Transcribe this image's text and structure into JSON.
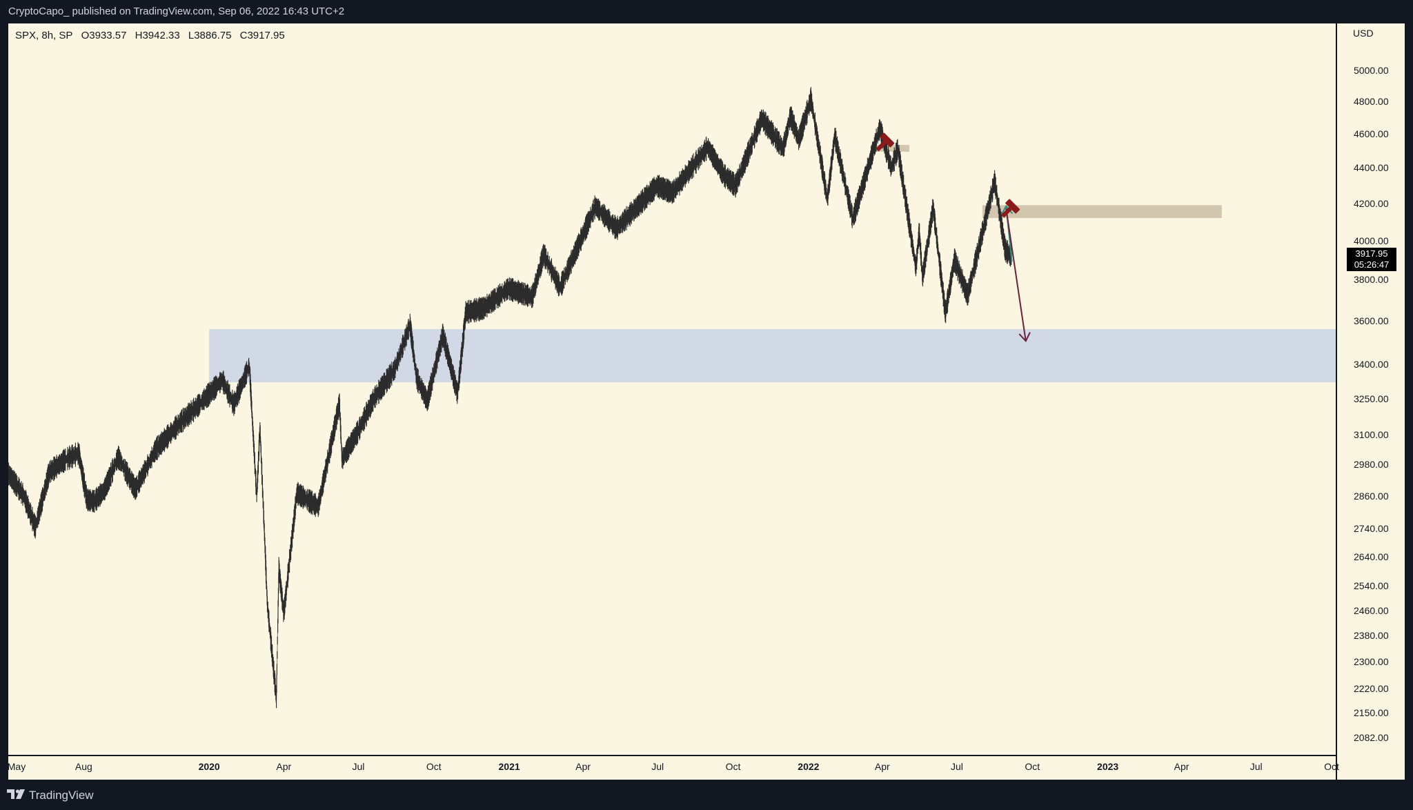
{
  "header": {
    "attribution": "CryptoCapo_ published on TradingView.com, Sep 06, 2022 16:43 UTC+2"
  },
  "legend": {
    "symbol": "SPX, 8h, SP",
    "open": "O3933.57",
    "high": "H3942.33",
    "low": "L3886.75",
    "close": "C3917.95"
  },
  "price_badge": {
    "price": "3917.95",
    "countdown": "05:26:47"
  },
  "footer": {
    "brand": "TradingView"
  },
  "colors": {
    "background": "#faf6e1",
    "frame": "#131722",
    "candles": "#2b2b2b",
    "support_zone": "#d1d8e6",
    "resistance_zone": "#cdc2a8",
    "bear_arrow": "#6b1f3a",
    "bounce_arrow": "#2b8f7e",
    "marker": "#8b1a1a"
  },
  "icons": [
    "tradingview-logo-icon",
    "gavel-icon"
  ],
  "chart_data": {
    "type": "line",
    "symbol": "SPX",
    "interval": "8h",
    "currency": "USD",
    "y_scale": "log",
    "ylim": [
      2035,
      5320
    ],
    "xlim": [
      "2019-05-01",
      "2023-10-06"
    ],
    "y_ticks": [
      "5000.00",
      "4800.00",
      "4600.00",
      "4400.00",
      "4200.00",
      "4000.00",
      "3800.00",
      "3600.00",
      "3400.00",
      "3250.00",
      "3100.00",
      "2980.00",
      "2860.00",
      "2740.00",
      "2640.00",
      "2540.00",
      "2460.00",
      "2380.00",
      "2300.00",
      "2220.00",
      "2150.00",
      "2082.00"
    ],
    "x_ticks": [
      {
        "label": "May",
        "date": "2019-05-01",
        "bold": false
      },
      {
        "label": "Aug",
        "date": "2019-08-01",
        "bold": false
      },
      {
        "label": "2020",
        "date": "2020-01-01",
        "bold": true
      },
      {
        "label": "Apr",
        "date": "2020-04-01",
        "bold": false
      },
      {
        "label": "Jul",
        "date": "2020-07-01",
        "bold": false
      },
      {
        "label": "Oct",
        "date": "2020-10-01",
        "bold": false
      },
      {
        "label": "2021",
        "date": "2021-01-01",
        "bold": true
      },
      {
        "label": "Apr",
        "date": "2021-04-01",
        "bold": false
      },
      {
        "label": "Jul",
        "date": "2021-07-01",
        "bold": false
      },
      {
        "label": "Oct",
        "date": "2021-10-01",
        "bold": false
      },
      {
        "label": "2022",
        "date": "2022-01-01",
        "bold": true
      },
      {
        "label": "Apr",
        "date": "2022-04-01",
        "bold": false
      },
      {
        "label": "Jul",
        "date": "2022-07-01",
        "bold": false
      },
      {
        "label": "Oct",
        "date": "2022-10-01",
        "bold": false
      },
      {
        "label": "2023",
        "date": "2023-01-01",
        "bold": true
      },
      {
        "label": "Apr",
        "date": "2023-04-01",
        "bold": false
      },
      {
        "label": "Jul",
        "date": "2023-07-01",
        "bold": false
      },
      {
        "label": "Oct",
        "date": "2023-10-01",
        "bold": false
      }
    ],
    "series": [
      {
        "values": [
          [
            "2019-05-01",
            2945
          ],
          [
            "2019-05-20",
            2860
          ],
          [
            "2019-06-03",
            2745
          ],
          [
            "2019-06-20",
            2950
          ],
          [
            "2019-07-10",
            3000
          ],
          [
            "2019-07-26",
            3025
          ],
          [
            "2019-08-05",
            2845
          ],
          [
            "2019-08-14",
            2840
          ],
          [
            "2019-08-26",
            2880
          ],
          [
            "2019-09-12",
            3010
          ],
          [
            "2019-10-03",
            2885
          ],
          [
            "2019-10-28",
            3040
          ],
          [
            "2019-11-27",
            3150
          ],
          [
            "2019-12-20",
            3225
          ],
          [
            "2020-01-17",
            3330
          ],
          [
            "2020-01-31",
            3225
          ],
          [
            "2020-02-19",
            3393
          ],
          [
            "2020-02-28",
            2855
          ],
          [
            "2020-03-03",
            3130
          ],
          [
            "2020-03-12",
            2480
          ],
          [
            "2020-03-23",
            2192
          ],
          [
            "2020-03-26",
            2600
          ],
          [
            "2020-04-01",
            2450
          ],
          [
            "2020-04-17",
            2870
          ],
          [
            "2020-05-13",
            2820
          ],
          [
            "2020-06-08",
            3230
          ],
          [
            "2020-06-11",
            3000
          ],
          [
            "2020-07-01",
            3115
          ],
          [
            "2020-07-20",
            3250
          ],
          [
            "2020-08-14",
            3375
          ],
          [
            "2020-09-02",
            3580
          ],
          [
            "2020-09-10",
            3340
          ],
          [
            "2020-09-23",
            3240
          ],
          [
            "2020-10-12",
            3534
          ],
          [
            "2020-10-30",
            3270
          ],
          [
            "2020-11-09",
            3640
          ],
          [
            "2020-12-01",
            3660
          ],
          [
            "2020-12-31",
            3756
          ],
          [
            "2021-01-29",
            3714
          ],
          [
            "2021-02-12",
            3930
          ],
          [
            "2021-03-04",
            3760
          ],
          [
            "2021-04-16",
            4185
          ],
          [
            "2021-05-12",
            4063
          ],
          [
            "2021-06-30",
            4298
          ],
          [
            "2021-07-19",
            4260
          ],
          [
            "2021-08-31",
            4523
          ],
          [
            "2021-09-20",
            4358
          ],
          [
            "2021-10-04",
            4300
          ],
          [
            "2021-11-05",
            4697
          ],
          [
            "2021-12-01",
            4513
          ],
          [
            "2021-12-10",
            4712
          ],
          [
            "2021-12-20",
            4568
          ],
          [
            "2022-01-04",
            4818
          ],
          [
            "2022-01-24",
            4222
          ],
          [
            "2022-02-02",
            4589
          ],
          [
            "2022-02-24",
            4114
          ],
          [
            "2022-03-29",
            4637
          ],
          [
            "2022-04-12",
            4400
          ],
          [
            "2022-04-20",
            4512
          ],
          [
            "2022-05-12",
            3858
          ],
          [
            "2022-05-16",
            4050
          ],
          [
            "2022-05-20",
            3810
          ],
          [
            "2022-06-02",
            4177
          ],
          [
            "2022-06-17",
            3636
          ],
          [
            "2022-06-28",
            3900
          ],
          [
            "2022-07-14",
            3723
          ],
          [
            "2022-08-16",
            4325
          ],
          [
            "2022-08-29",
            3950
          ],
          [
            "2022-09-06",
            3918
          ]
        ]
      }
    ],
    "zones": [
      {
        "name": "support",
        "from": "2020-01-01",
        "to": "2023-10-06",
        "low": 3320,
        "high": 3560
      },
      {
        "name": "resistance-2022",
        "from": "2022-08-01",
        "to": "2023-05-20",
        "low": 4120,
        "high": 4190
      },
      {
        "name": "resistance-apr-2022",
        "from": "2022-03-22",
        "to": "2022-05-04",
        "low": 4495,
        "high": 4535
      }
    ],
    "arrows": [
      {
        "from": [
          "2022-09-06",
          3890
        ],
        "to": [
          "2022-08-30",
          4185
        ],
        "color": "bounce"
      },
      {
        "from": [
          "2022-08-30",
          4170
        ],
        "to": [
          "2022-09-23",
          3505
        ],
        "color": "bear"
      }
    ],
    "markers": [
      {
        "date": "2022-04-06",
        "price": 4560
      },
      {
        "date": "2022-09-06",
        "price": 4180
      }
    ]
  }
}
